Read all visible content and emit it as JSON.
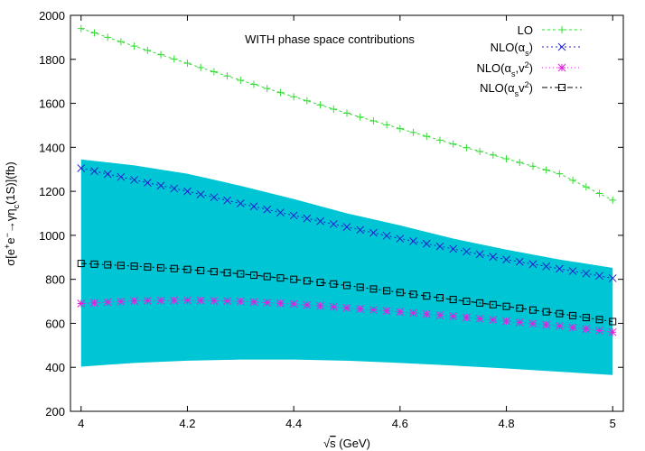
{
  "chart_data": {
    "type": "line",
    "title": "",
    "annotation": "WITH phase space contributions",
    "xlabel": "√s (GeV)",
    "xlabel_parts": {
      "root": "√",
      "var": "s",
      "unit": " (GeV)"
    },
    "ylabel": "σ[e+e−→γηc(1S)](fb)",
    "ylabel_parts": {
      "sigma": "σ[e",
      "plus": "+",
      "e": "e",
      "minus": "−",
      "arrow": "→γη",
      "c": "c",
      "tail": "(1S)](fb)"
    },
    "xlim": [
      3.98,
      5.02
    ],
    "ylim": [
      200,
      2000
    ],
    "xticks": [
      4,
      4.2,
      4.4,
      4.6,
      4.8,
      5
    ],
    "xtick_labels": [
      "4",
      "4.2",
      "4.4",
      "4.6",
      "4.8",
      "5"
    ],
    "yticks": [
      200,
      400,
      600,
      800,
      1000,
      1200,
      1400,
      1600,
      1800,
      2000
    ],
    "ytick_labels": [
      "200",
      "400",
      "600",
      "800",
      "1000",
      "1200",
      "1400",
      "1600",
      "1800",
      "2000"
    ],
    "legend_position": "top-right",
    "band": {
      "color": "#00c5d4",
      "x": [
        4.0,
        4.1,
        4.2,
        4.3,
        4.4,
        4.5,
        4.6,
        4.7,
        4.8,
        4.9,
        5.0
      ],
      "upper": [
        1345,
        1318,
        1280,
        1225,
        1165,
        1100,
        1045,
        985,
        935,
        890,
        852
      ],
      "lower": [
        403,
        420,
        430,
        435,
        435,
        430,
        420,
        408,
        395,
        380,
        365
      ]
    },
    "series": [
      {
        "name": "LO",
        "legend_parts": {
          "main": "LO"
        },
        "color": "#33dd33",
        "marker": "plus",
        "dash": "3,3",
        "x": [
          4.0,
          4.1,
          4.2,
          4.3,
          4.4,
          4.5,
          4.6,
          4.7,
          4.8,
          4.9,
          5.0
        ],
        "values": [
          1940,
          1860,
          1782,
          1705,
          1630,
          1555,
          1485,
          1415,
          1348,
          1280,
          1160
        ]
      },
      {
        "name": "NLO(αs)",
        "legend_parts": {
          "main": "NLO(α",
          "sub": "s",
          "tail": ")"
        },
        "color": "#2222cc",
        "marker": "x",
        "dash": "2,3",
        "x": [
          4.0,
          4.1,
          4.2,
          4.3,
          4.4,
          4.5,
          4.6,
          4.7,
          4.8,
          4.9,
          5.0
        ],
        "values": [
          1305,
          1252,
          1200,
          1145,
          1090,
          1038,
          985,
          938,
          890,
          848,
          805
        ]
      },
      {
        "name": "NLO(αs,v2)",
        "legend_parts": {
          "main": "NLO(α",
          "sub": "s",
          "mid": ",v",
          "sup": "2",
          "tail": ")"
        },
        "color": "#dd22dd",
        "marker": "star",
        "dash": "1,3",
        "x": [
          4.0,
          4.1,
          4.2,
          4.3,
          4.4,
          4.5,
          4.6,
          4.7,
          4.8,
          4.9,
          5.0
        ],
        "values": [
          690,
          702,
          705,
          700,
          688,
          670,
          652,
          632,
          610,
          588,
          560
        ]
      },
      {
        "name": "NLO(αsv2)",
        "legend_parts": {
          "main": "NLO(α",
          "sub": "s",
          "mid": "v",
          "sup": "2",
          "tail": ")"
        },
        "color": "#000000",
        "marker": "square",
        "dash": "6,3,2,3",
        "x": [
          4.0,
          4.1,
          4.2,
          4.3,
          4.4,
          4.5,
          4.6,
          4.7,
          4.8,
          4.9,
          5.0
        ],
        "values": [
          872,
          860,
          845,
          825,
          800,
          772,
          740,
          708,
          677,
          644,
          608
        ]
      }
    ]
  }
}
